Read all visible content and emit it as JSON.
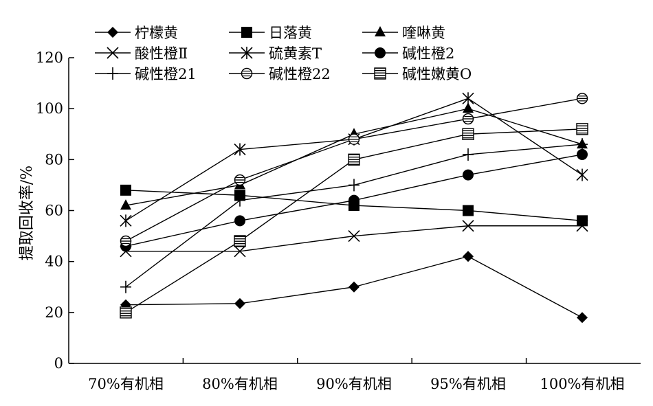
{
  "chart_data": {
    "type": "line",
    "title": "",
    "xlabel": "",
    "ylabel": "提取回收率/%",
    "categories": [
      "70%有机相",
      "80%有机相",
      "90%有机相",
      "95%有机相",
      "100%有机相"
    ],
    "ylim": [
      0,
      120
    ],
    "yticks": [
      0,
      20,
      40,
      60,
      80,
      100,
      120
    ],
    "grid": false,
    "legend_position": "top",
    "series": [
      {
        "name": "柠檬黄",
        "marker": "diamond",
        "values": [
          23,
          23.5,
          30,
          42,
          18
        ]
      },
      {
        "name": "日落黄",
        "marker": "square",
        "values": [
          68,
          66,
          62,
          60,
          56
        ]
      },
      {
        "name": "喹啉黄",
        "marker": "triangle",
        "values": [
          62,
          70,
          90,
          100,
          86
        ]
      },
      {
        "name": "酸性橙Ⅱ",
        "marker": "x",
        "values": [
          44,
          44,
          50,
          54,
          54
        ]
      },
      {
        "name": "硫黄素T",
        "marker": "asterisk",
        "values": [
          56,
          84,
          88,
          104,
          74
        ]
      },
      {
        "name": "碱性橙2",
        "marker": "circle",
        "values": [
          46,
          56,
          64,
          74,
          82
        ]
      },
      {
        "name": "碱性橙21",
        "marker": "plus",
        "values": [
          30,
          64,
          70,
          82,
          86
        ]
      },
      {
        "name": "碱性橙22",
        "marker": "circle-lined",
        "values": [
          48,
          72,
          88,
          96,
          104
        ]
      },
      {
        "name": "碱性嫩黄O",
        "marker": "square-hatched",
        "values": [
          20,
          48,
          80,
          90,
          92
        ]
      }
    ]
  }
}
